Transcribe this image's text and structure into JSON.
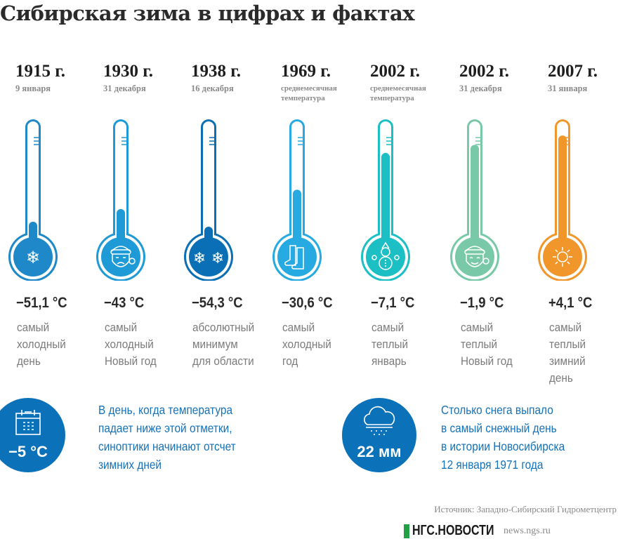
{
  "title": "Сибирская зима в цифрах и фактах",
  "records": [
    {
      "year": "1915 г.",
      "date": "9 января",
      "temp": "−51,1 °C",
      "value": -51.1,
      "desc": "самый\nхолодный\nдень",
      "color": "#1e88c8",
      "icon": "snowflake-icon"
    },
    {
      "year": "1930 г.",
      "date": "31 декабря",
      "temp": "−43 °C",
      "value": -43,
      "desc": "самый\nхолодный\nНовый год",
      "color": "#1e9ad6",
      "icon": "sad-santa-icon"
    },
    {
      "year": "1938 г.",
      "date": "16 декабря",
      "temp": "−54,3 °C",
      "value": -54.3,
      "desc": "абсолютный\nминимум\nдля области",
      "color": "#0b6fb5",
      "icon": "two-snowflakes-icon"
    },
    {
      "year": "1969 г.",
      "date": "среднемесячная\nтемпература",
      "temp": "−30,6 °C",
      "value": -30.6,
      "desc": "самый\nхолодный\nгод",
      "color": "#27aae1",
      "icon": "boots-icon"
    },
    {
      "year": "2002 г.",
      "date": "среднемесячная\nтемпература",
      "temp": "−7,1 °C",
      "value": -7.1,
      "desc": "самый\nтеплый\nянварь",
      "color": "#1cbfc3",
      "icon": "snowman-icon"
    },
    {
      "year": "2002 г.",
      "date": "31 декабря",
      "temp": "−1,9 °C",
      "value": -1.9,
      "desc": "самый\nтеплый\nНовый год",
      "color": "#79c9a8",
      "icon": "happy-santa-icon"
    },
    {
      "year": "2007 г.",
      "date": "31 января",
      "temp": "+4,1 °C",
      "value": 4.1,
      "desc": "самый\nтеплый\nзимний день",
      "color": "#f0962a",
      "icon": "sun-icon"
    }
  ],
  "facts": [
    {
      "value": "−5 °C",
      "text": "В день, когда температура\nпадает ниже этой отметки,\nсиноптики начинают отсчет\nзимних дней",
      "icon": "calendar-icon"
    },
    {
      "value": "22 мм",
      "text": "Столько снега выпало\nв самый снежный день\nв истории Новосибирска\n12 января 1971 года",
      "icon": "snow-cloud-icon"
    }
  ],
  "source": "Источник: Западно-Сибирский Гидрометцентр",
  "logo": {
    "brand": "НГС.НОВОСТИ",
    "site": "news.ngs.ru"
  },
  "colors": {
    "accent": "#0b72b9",
    "text_blue": "#1672b8"
  }
}
